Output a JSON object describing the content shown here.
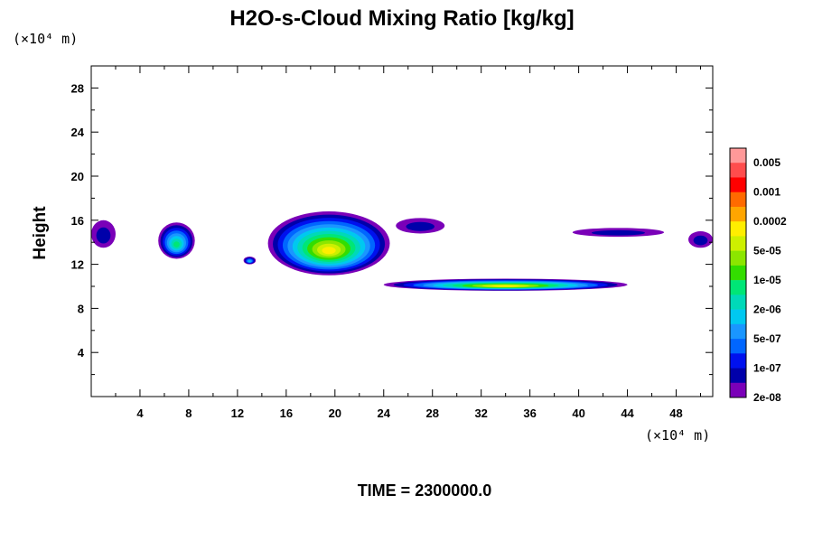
{
  "chart_data": {
    "type": "heatmap",
    "title": "H2O-s-Cloud Mixing Ratio [kg/kg]",
    "xlabel": "",
    "ylabel": "Height",
    "x_scale_label": "(×10⁴ m)",
    "y_scale_label": "(×10⁴ m)",
    "xlim": [
      0,
      51
    ],
    "ylim": [
      0,
      30
    ],
    "x_ticks": [
      "4",
      "8",
      "12",
      "16",
      "20",
      "24",
      "28",
      "32",
      "36",
      "40",
      "44",
      "48"
    ],
    "y_ticks": [
      "4",
      "8",
      "12",
      "16",
      "20",
      "24",
      "28"
    ],
    "footer": "TIME = 2300000.0",
    "colorbar": {
      "labels": [
        "0.005",
        "0.001",
        "0.0002",
        "5e-05",
        "1e-05",
        "2e-06",
        "5e-07",
        "1e-07",
        "2e-08"
      ],
      "colors": [
        "#ff9999",
        "#ff4d4d",
        "#ff0000",
        "#ff6a00",
        "#ffa500",
        "#ffee00",
        "#cdf000",
        "#8ce600",
        "#33dd00",
        "#00e676",
        "#00d9b8",
        "#00c8f0",
        "#1a96ff",
        "#0066ff",
        "#0011ee",
        "#0000aa",
        "#7a00b8"
      ]
    },
    "cloud_regions": [
      {
        "x_range": [
          0,
          2
        ],
        "z_range": [
          13.5,
          16
        ],
        "max_level": "1e-07"
      },
      {
        "x_range": [
          5.5,
          8.5
        ],
        "z_range": [
          12.5,
          15.8
        ],
        "max_level": "1e-05"
      },
      {
        "x_range": [
          12.5,
          13.5
        ],
        "z_range": [
          12,
          12.7
        ],
        "max_level": "2e-06"
      },
      {
        "x_range": [
          14.5,
          24.5
        ],
        "z_range": [
          11,
          16.8
        ],
        "max_level": "0.0002"
      },
      {
        "x_range": [
          25,
          29
        ],
        "z_range": [
          14.8,
          16.2
        ],
        "max_level": "1e-07"
      },
      {
        "x_range": [
          24,
          44
        ],
        "z_range": [
          9.6,
          10.7
        ],
        "max_level": "0.0002"
      },
      {
        "x_range": [
          39.5,
          47
        ],
        "z_range": [
          14.5,
          15.3
        ],
        "max_level": "1e-07"
      },
      {
        "x_range": [
          49,
          51
        ],
        "z_range": [
          13.5,
          15
        ],
        "max_level": "1e-07"
      }
    ]
  }
}
